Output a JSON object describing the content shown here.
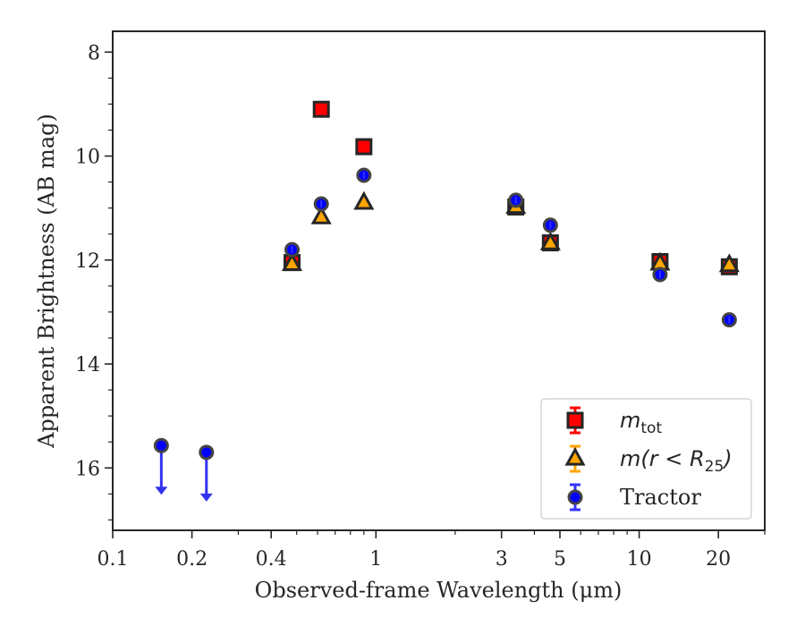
{
  "chart_data": {
    "type": "scatter",
    "xscale": "log",
    "yaxis_inverted": true,
    "xlim": [
      0.1,
      30
    ],
    "ylim": [
      17.2,
      7.6
    ],
    "xlabel": "Observed-frame Wavelength (μm)",
    "ylabel": "Apparent Brightness (AB mag)",
    "xticks": [
      {
        "value": 0.1,
        "label": "0.1"
      },
      {
        "value": 0.2,
        "label": "0.2"
      },
      {
        "value": 0.4,
        "label": "0.4"
      },
      {
        "value": 1,
        "label": "1"
      },
      {
        "value": 3,
        "label": "3"
      },
      {
        "value": 5,
        "label": "5"
      },
      {
        "value": 10,
        "label": "10"
      },
      {
        "value": 20,
        "label": "20"
      }
    ],
    "yticks": [
      {
        "value": 8,
        "label": "8"
      },
      {
        "value": 10,
        "label": "10"
      },
      {
        "value": 12,
        "label": "12"
      },
      {
        "value": 14,
        "label": "14"
      },
      {
        "value": 16,
        "label": "16"
      }
    ],
    "legend_position": "lower-right",
    "grid": false,
    "series": [
      {
        "name": "m_tot",
        "legend_main": "m",
        "legend_sub": "tot",
        "marker": "square",
        "color": "#ff0000",
        "errorbar_color": "#ff0000",
        "points": [
          {
            "x": 0.48,
            "y": 12.05
          },
          {
            "x": 0.62,
            "y": 9.1
          },
          {
            "x": 0.9,
            "y": 9.82
          },
          {
            "x": 3.4,
            "y": 10.98
          },
          {
            "x": 4.6,
            "y": 11.67
          },
          {
            "x": 12.0,
            "y": 12.03
          },
          {
            "x": 22.0,
            "y": 12.13
          }
        ]
      },
      {
        "name": "m(r < R_25)",
        "legend_main": "m(r < R",
        "legend_sub": "25",
        "legend_tail": ")",
        "marker": "triangle",
        "color": "#ffa500",
        "errorbar_color": "#ffa500",
        "points": [
          {
            "x": 0.48,
            "y": 12.08
          },
          {
            "x": 0.62,
            "y": 11.18
          },
          {
            "x": 0.9,
            "y": 10.9
          },
          {
            "x": 3.4,
            "y": 10.98
          },
          {
            "x": 4.6,
            "y": 11.68
          },
          {
            "x": 12.0,
            "y": 12.07
          },
          {
            "x": 22.0,
            "y": 12.1
          }
        ]
      },
      {
        "name": "Tractor",
        "marker": "circle",
        "color": "#0000ff",
        "errorbar_color": "#3333ff",
        "points": [
          {
            "x": 0.48,
            "y": 11.8
          },
          {
            "x": 0.62,
            "y": 10.92
          },
          {
            "x": 0.9,
            "y": 10.37
          },
          {
            "x": 3.4,
            "y": 10.85
          },
          {
            "x": 4.6,
            "y": 11.33
          },
          {
            "x": 12.0,
            "y": 12.28
          },
          {
            "x": 22.0,
            "y": 13.15
          }
        ],
        "upper_limits": [
          {
            "x": 0.153,
            "y": 15.57
          },
          {
            "x": 0.227,
            "y": 15.7
          }
        ]
      }
    ]
  }
}
